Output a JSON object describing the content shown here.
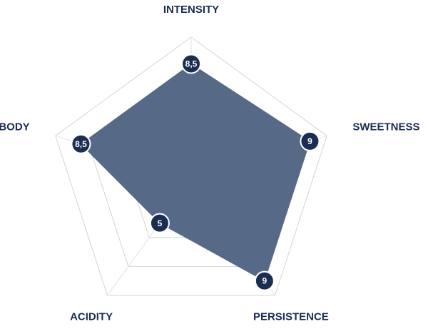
{
  "chart_data": {
    "type": "radar",
    "categories": [
      "INTENSITY",
      "SWEETNESS",
      "PERSISTENCE",
      "ACIDITY",
      "BODY"
    ],
    "values": [
      8.5,
      9,
      9,
      5,
      8.5
    ],
    "value_labels": [
      "8,5",
      "9",
      "9",
      "5",
      "8,5"
    ],
    "rlim": [
      2,
      10
    ],
    "rticks": [
      2,
      4,
      6,
      8,
      10
    ],
    "color": "#566a88",
    "marker_color": "#1c2d52",
    "grid": true
  }
}
